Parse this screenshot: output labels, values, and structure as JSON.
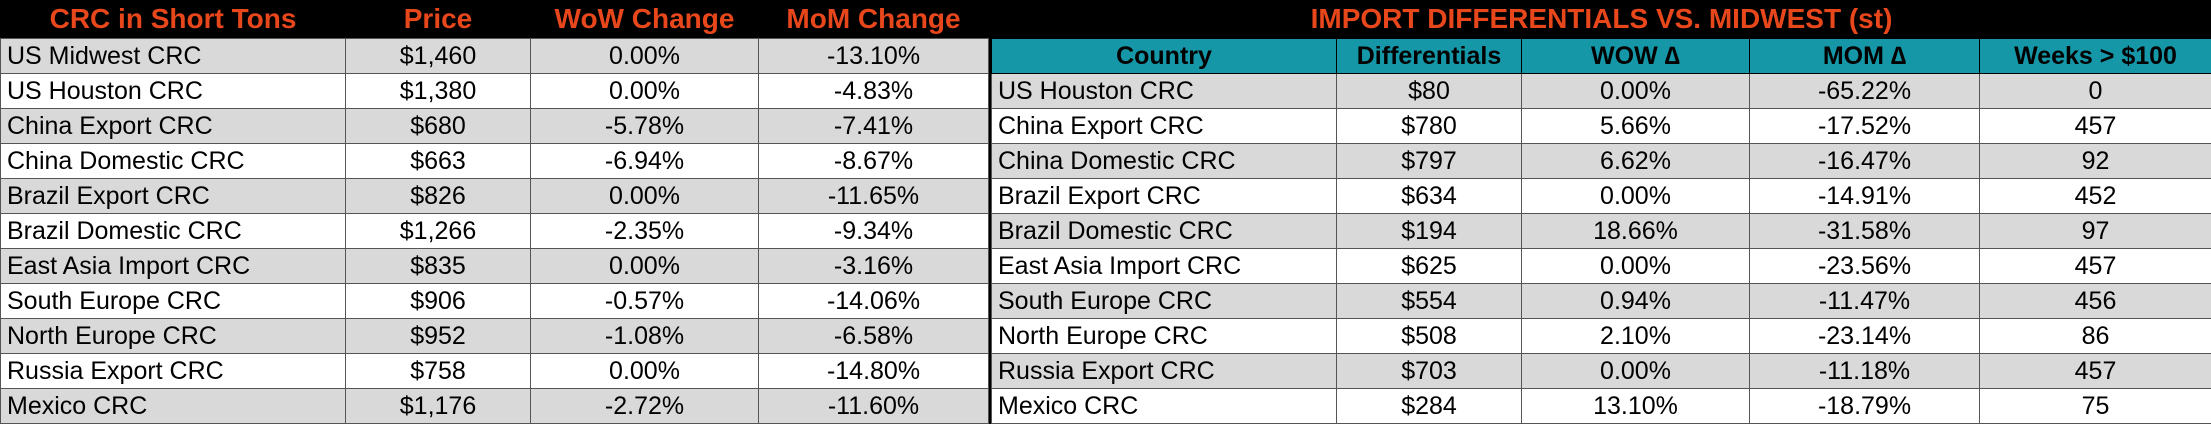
{
  "left_table": {
    "headers": [
      "CRC in Short Tons",
      "Price",
      "WoW Change",
      "MoM Change"
    ],
    "rows": [
      [
        "US Midwest CRC",
        "$1,460",
        "0.00%",
        "-13.10%"
      ],
      [
        "US Houston CRC",
        "$1,380",
        "0.00%",
        "-4.83%"
      ],
      [
        "China Export CRC",
        "$680",
        "-5.78%",
        "-7.41%"
      ],
      [
        "China Domestic CRC",
        "$663",
        "-6.94%",
        "-8.67%"
      ],
      [
        "Brazil Export CRC",
        "$826",
        "0.00%",
        "-11.65%"
      ],
      [
        "Brazil Domestic CRC",
        "$1,266",
        "-2.35%",
        "-9.34%"
      ],
      [
        "East Asia Import CRC",
        "$835",
        "0.00%",
        "-3.16%"
      ],
      [
        "South Europe CRC",
        "$906",
        "-0.57%",
        "-14.06%"
      ],
      [
        "North Europe CRC",
        "$952",
        "-1.08%",
        "-6.58%"
      ],
      [
        "Russia Export CRC",
        "$758",
        "0.00%",
        "-14.80%"
      ],
      [
        "Mexico CRC",
        "$1,176",
        "-2.72%",
        "-11.60%"
      ]
    ]
  },
  "right_table": {
    "title": "IMPORT DIFFERENTIALS VS. MIDWEST (st)",
    "headers": [
      "Country",
      "Differentials",
      "WOW ∆",
      "MOM ∆",
      "Weeks > $100"
    ],
    "rows": [
      [
        "US Houston CRC",
        "$80",
        "0.00%",
        "-65.22%",
        "0"
      ],
      [
        "China Export CRC",
        "$780",
        "5.66%",
        "-17.52%",
        "457"
      ],
      [
        "China Domestic CRC",
        "$797",
        "6.62%",
        "-16.47%",
        "92"
      ],
      [
        "Brazil Export CRC",
        "$634",
        "0.00%",
        "-14.91%",
        "452"
      ],
      [
        "Brazil Domestic CRC",
        "$194",
        "18.66%",
        "-31.58%",
        "97"
      ],
      [
        "East Asia Import CRC",
        "$625",
        "0.00%",
        "-23.56%",
        "457"
      ],
      [
        "South Europe CRC",
        "$554",
        "0.94%",
        "-11.47%",
        "456"
      ],
      [
        "North Europe CRC",
        "$508",
        "2.10%",
        "-23.14%",
        "86"
      ],
      [
        "Russia Export CRC",
        "$703",
        "0.00%",
        "-11.18%",
        "457"
      ],
      [
        "Mexico CRC",
        "$284",
        "13.10%",
        "-18.79%",
        "75"
      ]
    ]
  },
  "colors": {
    "title_text": "#e8471c",
    "header_fill": "#1597a8",
    "row_shade": "#d9d9d9",
    "row_plain": "#ffffff",
    "background": "#000000"
  }
}
